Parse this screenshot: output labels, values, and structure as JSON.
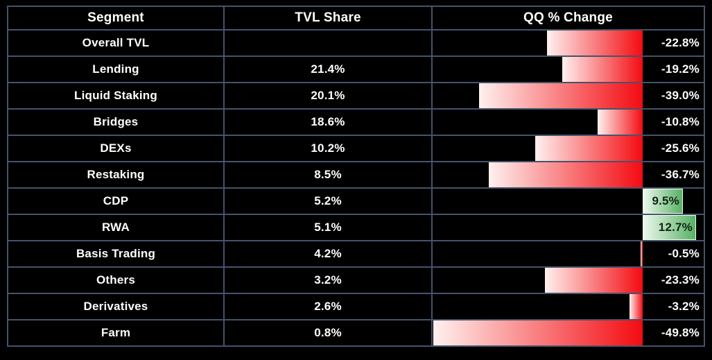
{
  "table": {
    "columns": [
      "Segment",
      "TVL Share",
      "QQ % Change"
    ],
    "rows": [
      {
        "segment": "Overall TVL",
        "tvl_share": "",
        "qq_label": "-22.8%",
        "qq_value": -22.8
      },
      {
        "segment": "Lending",
        "tvl_share": "21.4%",
        "qq_label": "-19.2%",
        "qq_value": -19.2
      },
      {
        "segment": "Liquid Staking",
        "tvl_share": "20.1%",
        "qq_label": "-39.0%",
        "qq_value": -39.0
      },
      {
        "segment": "Bridges",
        "tvl_share": "18.6%",
        "qq_label": "-10.8%",
        "qq_value": -10.8
      },
      {
        "segment": "DEXs",
        "tvl_share": "10.2%",
        "qq_label": "-25.6%",
        "qq_value": -25.6
      },
      {
        "segment": "Restaking",
        "tvl_share": "8.5%",
        "qq_label": "-36.7%",
        "qq_value": -36.7
      },
      {
        "segment": "CDP",
        "tvl_share": "5.2%",
        "qq_label": "9.5%",
        "qq_value": 9.5
      },
      {
        "segment": "RWA",
        "tvl_share": "5.1%",
        "qq_label": "12.7%",
        "qq_value": 12.7
      },
      {
        "segment": "Basis Trading",
        "tvl_share": "4.2%",
        "qq_label": "-0.5%",
        "qq_value": -0.5
      },
      {
        "segment": "Others",
        "tvl_share": "3.2%",
        "qq_label": "-23.3%",
        "qq_value": -23.3
      },
      {
        "segment": "Derivatives",
        "tvl_share": "2.6%",
        "qq_label": "-3.2%",
        "qq_value": -3.2
      },
      {
        "segment": "Farm",
        "tvl_share": "0.8%",
        "qq_label": "-49.8%",
        "qq_value": -49.8
      }
    ]
  },
  "chart_data": {
    "type": "table",
    "title": "",
    "columns": [
      "Segment",
      "TVL Share",
      "QQ % Change"
    ],
    "categories": [
      "Overall TVL",
      "Lending",
      "Liquid Staking",
      "Bridges",
      "DEXs",
      "Restaking",
      "CDP",
      "RWA",
      "Basis Trading",
      "Others",
      "Derivatives",
      "Farm"
    ],
    "series": [
      {
        "name": "TVL Share",
        "unit": "%",
        "values": [
          null,
          21.4,
          20.1,
          18.6,
          10.2,
          8.5,
          5.2,
          5.1,
          4.2,
          3.2,
          2.6,
          0.8
        ]
      },
      {
        "name": "QQ % Change",
        "unit": "%",
        "values": [
          -22.8,
          -19.2,
          -39.0,
          -10.8,
          -25.6,
          -36.7,
          9.5,
          12.7,
          -0.5,
          -23.3,
          -3.2,
          -49.8
        ]
      }
    ],
    "bar_visualization": {
      "column": "QQ % Change",
      "style": "data-bars anchored at zero axis near right edge; negative bars grow left, positive grow right",
      "axis_max_magnitude": 50,
      "grid": false,
      "legend": false
    }
  },
  "colors": {
    "background": "#000000",
    "border": "#44546c",
    "text": "#ffffff",
    "negative_bar_start": "#fff1ef",
    "negative_bar_end": "#f30b11",
    "positive_bar_start": "#ecf8ec",
    "positive_bar_end": "#58b163",
    "positive_bar_border": "#eefbee",
    "positive_text": "#13241a"
  }
}
